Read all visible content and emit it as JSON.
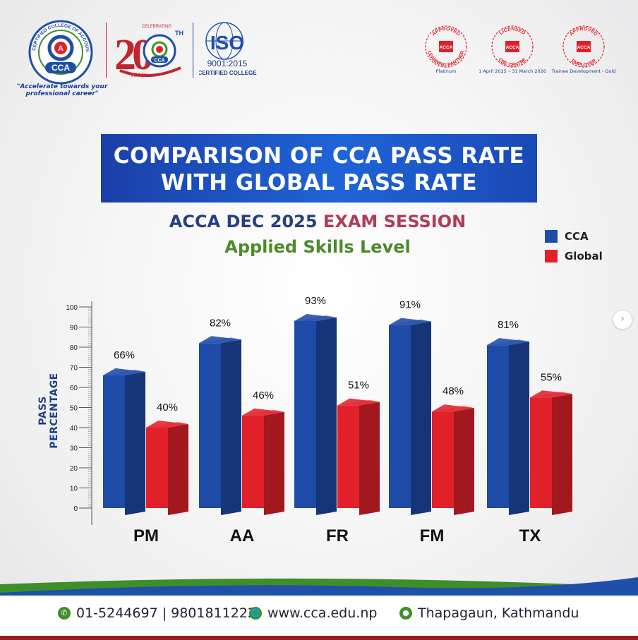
{
  "header": {
    "cca_logo": {
      "ring_text": "CERTIFIED COLLEGE OF ACCOUNTANCY",
      "letter": "A",
      "short": "CCA",
      "tagline": "\"Accelerate towards your professional career\""
    },
    "anniversary": {
      "celebrating": "CELEBRATING",
      "number": "20",
      "suffix": "TH",
      "years": "YEARS",
      "short": "CCA"
    },
    "iso": {
      "title": "ISO",
      "standard": "9001:2015",
      "caption": "CERTIFIED COLLEGE"
    },
    "badges": [
      {
        "top": "APPROVED",
        "bottom": "LEARNING PARTNER",
        "brand": "ACCA",
        "caption": "Platinum"
      },
      {
        "top": "LICENSED",
        "bottom": "CBE CENTRE",
        "brand": "ACCA",
        "caption": "1 April 2025 – 31 March 2026"
      },
      {
        "top": "APPROVED",
        "bottom": "EMPLOYER",
        "brand": "ACCA",
        "caption": "Trainee Development - Gold"
      }
    ]
  },
  "banner": {
    "line1": "COMPARISON OF CCA PASS RATE",
    "line2": "WITH GLOBAL PASS RATE"
  },
  "chart_data": {
    "type": "bar",
    "title_part1": "ACCA DEC 2025",
    "title_part2": "EXAM SESSION",
    "subtitle": "Applied Skills Level",
    "categories": [
      "PM",
      "AA",
      "FR",
      "FM",
      "TX"
    ],
    "series": [
      {
        "name": "CCA",
        "values": [
          66,
          82,
          93,
          91,
          81
        ],
        "color": "#1e4aa8",
        "labels": [
          "66%",
          "82%",
          "93%",
          "91%",
          "81%"
        ]
      },
      {
        "name": "Global",
        "values": [
          40,
          46,
          51,
          48,
          55
        ],
        "color": "#e2202a",
        "labels": [
          "40%",
          "46%",
          "51%",
          "48%",
          "55%"
        ]
      }
    ],
    "ylabel": "PASS PERCENTAGE",
    "ylim": [
      0,
      100
    ],
    "yticks": [
      "0",
      "10",
      "20",
      "30",
      "40",
      "50",
      "60",
      "70",
      "80",
      "90",
      "100"
    ],
    "legend_position": "top-right"
  },
  "footer": {
    "phone": "01-5244697 | 9801811222",
    "website": "www.cca.edu.np",
    "address": "Thapagaun, Kathmandu",
    "icons": [
      "phone-icon",
      "globe-icon",
      "location-pin-icon"
    ],
    "wave_colors": [
      "#1f4fa8",
      "#3e8f2a"
    ]
  }
}
